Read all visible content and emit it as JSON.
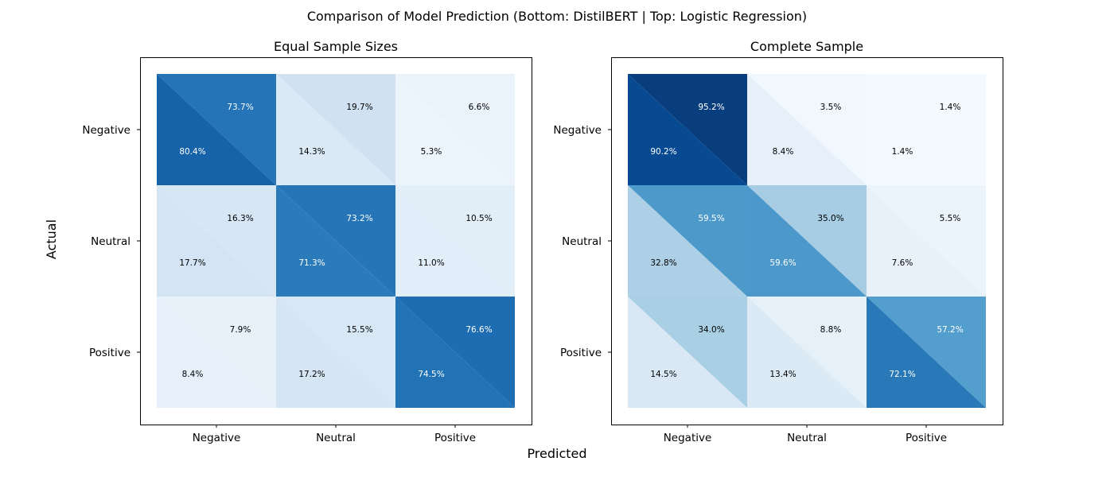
{
  "chart_data": {
    "type": "heatmap",
    "title": "Comparison of Model Prediction (Bottom: DistilBERT | Top: Logistic Regression)",
    "xlabel": "Predicted",
    "ylabel": "Actual",
    "categories": [
      "Negative",
      "Neutral",
      "Positive"
    ],
    "colormap": "Blues",
    "value_range": [
      0,
      100
    ],
    "cell_split": "diagonal: upper-right triangle = Logistic Regression, lower-left triangle = DistilBERT",
    "panels": [
      {
        "title": "Equal Sample Sizes",
        "top_model": "Logistic Regression",
        "bottom_model": "DistilBERT",
        "top": [
          [
            73.7,
            19.7,
            6.6
          ],
          [
            16.3,
            73.2,
            10.5
          ],
          [
            7.9,
            15.5,
            76.6
          ]
        ],
        "bottom": [
          [
            80.4,
            14.3,
            5.3
          ],
          [
            17.7,
            71.3,
            11.0
          ],
          [
            8.4,
            17.2,
            74.5
          ]
        ]
      },
      {
        "title": "Complete Sample",
        "top_model": "Logistic Regression",
        "bottom_model": "DistilBERT",
        "top": [
          [
            95.2,
            3.5,
            1.4
          ],
          [
            59.5,
            35.0,
            5.5
          ],
          [
            34.0,
            8.8,
            57.2
          ]
        ],
        "bottom": [
          [
            90.2,
            8.4,
            1.4
          ],
          [
            32.8,
            59.6,
            7.6
          ],
          [
            14.5,
            13.4,
            72.1
          ]
        ]
      }
    ]
  }
}
